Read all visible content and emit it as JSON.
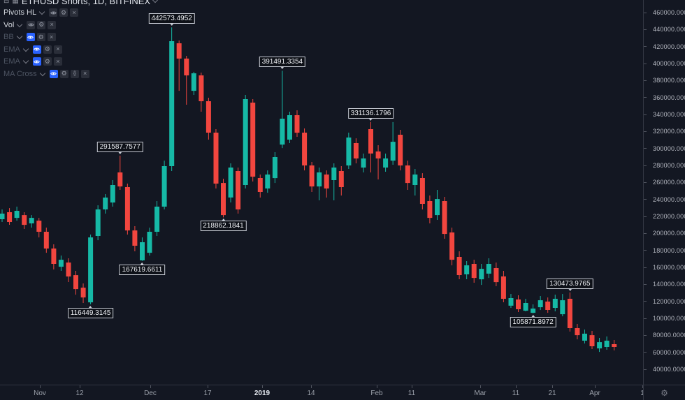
{
  "header": {
    "title": "ETHUSD Shorts, 1D, BITFINEX"
  },
  "legend": {
    "rows": [
      {
        "label": "Pivots HL",
        "muted": false,
        "buttons": [
          "eye",
          "gear",
          "close"
        ]
      },
      {
        "label": "Vol",
        "muted": false,
        "buttons": [
          "eye",
          "gear",
          "close"
        ]
      },
      {
        "label": "BB",
        "muted": true,
        "buttons": [
          "eye-active",
          "gear",
          "close"
        ]
      },
      {
        "label": "EMA",
        "muted": true,
        "buttons": [
          "eye-active",
          "gear",
          "close"
        ]
      },
      {
        "label": "EMA",
        "muted": true,
        "buttons": [
          "eye-active",
          "gear",
          "close"
        ]
      },
      {
        "label": "MA Cross",
        "muted": true,
        "buttons": [
          "eye-active",
          "gear",
          "braces",
          "close"
        ]
      }
    ]
  },
  "icons": {
    "gear": "⚙",
    "close": "×",
    "braces": "{}",
    "window": "⊟",
    "grid": "▦"
  },
  "colors": {
    "background": "#131722",
    "up": "#16b9a6",
    "down": "#f2463f",
    "accent_blue": "#2962ff",
    "axis_text": "#b2b5be",
    "pivot_border": "#c9cdd6"
  },
  "chart_data": {
    "type": "candlestick",
    "symbol": "ETHUSD Shorts",
    "interval": "1D",
    "exchange": "BITFINEX",
    "legend_position": "top-left",
    "grid": false,
    "y_axis": {
      "max": 460000,
      "min": 40000,
      "step": 20000,
      "decimals": 4
    },
    "x_ticks": [
      {
        "label": "Nov",
        "x": 57
      },
      {
        "label": "12",
        "x": 114
      },
      {
        "label": "Dec",
        "x": 215
      },
      {
        "label": "17",
        "x": 297
      },
      {
        "label": "2019",
        "x": 375,
        "major": true
      },
      {
        "label": "14",
        "x": 445
      },
      {
        "label": "Feb",
        "x": 539
      },
      {
        "label": "11",
        "x": 589
      },
      {
        "label": "Mar",
        "x": 687
      },
      {
        "label": "11",
        "x": 738
      },
      {
        "label": "21",
        "x": 790
      },
      {
        "label": "Apr",
        "x": 851
      },
      {
        "label": "1",
        "x": 919
      }
    ],
    "candles": [
      [
        216700,
        228200,
        213400,
        223300
      ],
      [
        224900,
        229800,
        210100,
        213400
      ],
      [
        218300,
        231500,
        215000,
        226600
      ],
      [
        221600,
        224900,
        205200,
        210100
      ],
      [
        211800,
        221600,
        206800,
        218300
      ],
      [
        215000,
        218300,
        195300,
        201900
      ],
      [
        201900,
        206800,
        177200,
        182200
      ],
      [
        182200,
        187100,
        157500,
        164100
      ],
      [
        160800,
        173900,
        155900,
        169000
      ],
      [
        165700,
        170700,
        142700,
        149300
      ],
      [
        150900,
        155900,
        127900,
        134500
      ],
      [
        136100,
        141100,
        118100,
        124600
      ],
      [
        118900,
        198600,
        116449,
        195300
      ],
      [
        197000,
        233100,
        192000,
        228200
      ],
      [
        228200,
        246300,
        223300,
        242200
      ],
      [
        236400,
        262700,
        231500,
        257000
      ],
      [
        271800,
        291587,
        251200,
        255300
      ],
      [
        254500,
        258600,
        198600,
        203500
      ],
      [
        203500,
        208500,
        178900,
        185500
      ],
      [
        168200,
        195300,
        167619,
        189600
      ],
      [
        177200,
        206800,
        173900,
        201900
      ],
      [
        201900,
        238100,
        197000,
        231500
      ],
      [
        231500,
        285700,
        228200,
        279200
      ],
      [
        279200,
        442573,
        273400,
        426300
      ],
      [
        423800,
        427100,
        367900,
        405800
      ],
      [
        405800,
        409000,
        351500,
        386000
      ],
      [
        367900,
        390200,
        363000,
        388500
      ],
      [
        386000,
        389300,
        343300,
        355600
      ],
      [
        355600,
        359700,
        310400,
        318600
      ],
      [
        318600,
        322700,
        252900,
        258600
      ],
      [
        259400,
        264400,
        218862,
        221600
      ],
      [
        242200,
        282500,
        236400,
        277500
      ],
      [
        273400,
        277500,
        223300,
        228200
      ],
      [
        257000,
        363000,
        252900,
        358100
      ],
      [
        354000,
        358100,
        261100,
        266800
      ],
      [
        265200,
        269300,
        242200,
        248800
      ],
      [
        252900,
        274200,
        247900,
        269300
      ],
      [
        265200,
        295600,
        259400,
        289900
      ],
      [
        304600,
        391491,
        300500,
        335100
      ],
      [
        310400,
        343300,
        306300,
        339200
      ],
      [
        339200,
        344900,
        313700,
        318600
      ],
      [
        318600,
        323600,
        274200,
        280000
      ],
      [
        280000,
        284100,
        248800,
        255300
      ],
      [
        255300,
        277500,
        238900,
        271800
      ],
      [
        269300,
        274200,
        242200,
        252900
      ],
      [
        262700,
        282500,
        238900,
        277500
      ],
      [
        273400,
        279200,
        244600,
        254500
      ],
      [
        280000,
        318600,
        275900,
        312900
      ],
      [
        306300,
        312000,
        282500,
        288200
      ],
      [
        277500,
        294000,
        271800,
        288200
      ],
      [
        322700,
        331136,
        271800,
        294000
      ],
      [
        296400,
        303800,
        263500,
        288200
      ],
      [
        277500,
        294000,
        272600,
        288200
      ],
      [
        285700,
        331000,
        280800,
        307900
      ],
      [
        316200,
        321900,
        274200,
        280000
      ],
      [
        280000,
        285700,
        251200,
        259400
      ],
      [
        257000,
        275900,
        244600,
        269300
      ],
      [
        265200,
        270900,
        228200,
        234800
      ],
      [
        238100,
        244600,
        211800,
        218300
      ],
      [
        221600,
        251200,
        215900,
        240500
      ],
      [
        238100,
        243000,
        193700,
        199400
      ],
      [
        201100,
        206800,
        162400,
        169000
      ],
      [
        172300,
        178900,
        146000,
        150900
      ],
      [
        151800,
        167400,
        146000,
        162400
      ],
      [
        164100,
        169000,
        141900,
        147600
      ],
      [
        146000,
        164100,
        139400,
        158300
      ],
      [
        152600,
        170700,
        147600,
        164100
      ],
      [
        159200,
        165700,
        137800,
        142700
      ],
      [
        149300,
        155900,
        118900,
        123000
      ],
      [
        114800,
        128700,
        112300,
        123800
      ],
      [
        122200,
        127100,
        107400,
        110700
      ],
      [
        109000,
        123000,
        108200,
        118100
      ],
      [
        106500,
        116400,
        105871,
        111500
      ],
      [
        113100,
        126300,
        109800,
        121300
      ],
      [
        119700,
        124600,
        106500,
        109800
      ],
      [
        112300,
        127900,
        108200,
        123000
      ],
      [
        104900,
        128700,
        102400,
        121300
      ],
      [
        123000,
        130473,
        84400,
        88500
      ],
      [
        88500,
        93400,
        75300,
        80200
      ],
      [
        73700,
        86800,
        70400,
        81900
      ],
      [
        80200,
        85200,
        63800,
        67100
      ],
      [
        64600,
        77000,
        60500,
        72000
      ],
      [
        66300,
        78600,
        63000,
        73700
      ],
      [
        69600,
        74500,
        62200,
        66300
      ]
    ],
    "pivots": [
      {
        "value": "442573.4952",
        "index": 23,
        "side": "high"
      },
      {
        "value": "391491.3354",
        "index": 38,
        "side": "high"
      },
      {
        "value": "331136.1796",
        "index": 50,
        "side": "high"
      },
      {
        "value": "291587.7577",
        "index": 16,
        "side": "high"
      },
      {
        "value": "130473.9765",
        "index": 77,
        "side": "high"
      },
      {
        "value": "218862.1841",
        "index": 30,
        "side": "low"
      },
      {
        "value": "167619.6611",
        "index": 19,
        "side": "low"
      },
      {
        "value": "116449.3145",
        "index": 12,
        "side": "low"
      },
      {
        "value": "105871.8972",
        "index": 72,
        "side": "low"
      }
    ]
  }
}
